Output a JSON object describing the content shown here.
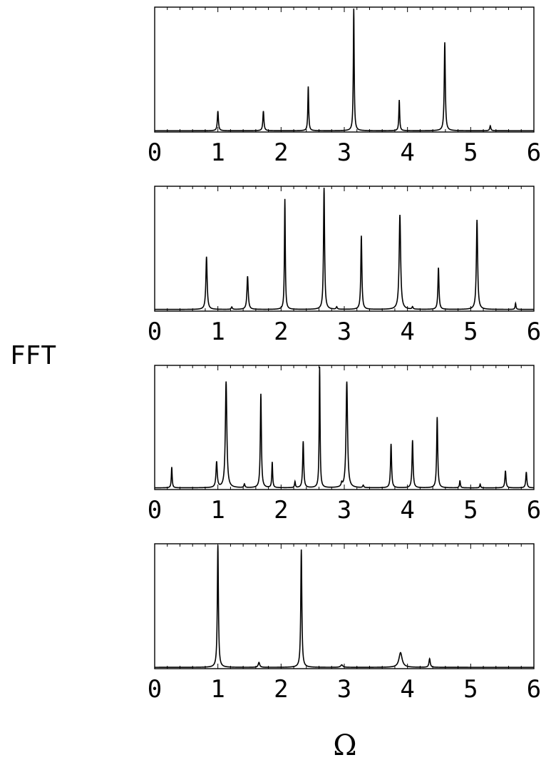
{
  "figure": {
    "ylabel": "FFT",
    "xlabel": "Ω"
  },
  "chart_data": [
    {
      "type": "line",
      "xlim": [
        0,
        6
      ],
      "ylim": [
        0,
        1
      ],
      "xticks": [
        "0",
        "1",
        "2",
        "3",
        "4",
        "5",
        "6"
      ],
      "baseline": 0.005,
      "peaks": [
        {
          "x": 1.0,
          "h": 0.16,
          "w": 0.01
        },
        {
          "x": 1.72,
          "h": 0.16,
          "w": 0.01
        },
        {
          "x": 2.43,
          "h": 0.36,
          "w": 0.008
        },
        {
          "x": 3.15,
          "h": 1.0,
          "w": 0.008
        },
        {
          "x": 3.87,
          "h": 0.25,
          "w": 0.008
        },
        {
          "x": 4.59,
          "h": 0.72,
          "w": 0.01
        },
        {
          "x": 5.31,
          "h": 0.04,
          "w": 0.01
        }
      ]
    },
    {
      "type": "line",
      "xlim": [
        0,
        6
      ],
      "ylim": [
        0,
        1
      ],
      "xticks": [
        "0",
        "1",
        "2",
        "3",
        "4",
        "5",
        "6"
      ],
      "baseline": 0.008,
      "peaks": [
        {
          "x": 0.82,
          "h": 0.43,
          "w": 0.012
        },
        {
          "x": 1.22,
          "h": 0.02,
          "w": 0.01
        },
        {
          "x": 1.47,
          "h": 0.27,
          "w": 0.012
        },
        {
          "x": 2.06,
          "h": 0.9,
          "w": 0.008
        },
        {
          "x": 2.68,
          "h": 1.0,
          "w": 0.01
        },
        {
          "x": 2.88,
          "h": 0.02,
          "w": 0.01
        },
        {
          "x": 3.27,
          "h": 0.6,
          "w": 0.01
        },
        {
          "x": 3.88,
          "h": 0.77,
          "w": 0.014
        },
        {
          "x": 4.08,
          "h": 0.02,
          "w": 0.01
        },
        {
          "x": 4.49,
          "h": 0.34,
          "w": 0.01
        },
        {
          "x": 5.1,
          "h": 0.73,
          "w": 0.012
        },
        {
          "x": 5.71,
          "h": 0.05,
          "w": 0.008
        }
      ]
    },
    {
      "type": "line",
      "xlim": [
        0,
        6
      ],
      "ylim": [
        0,
        1
      ],
      "xticks": [
        "0",
        "1",
        "2",
        "3",
        "4",
        "5",
        "6"
      ],
      "baseline": 0.008,
      "peaks": [
        {
          "x": 0.27,
          "h": 0.17,
          "w": 0.008
        },
        {
          "x": 0.98,
          "h": 0.21,
          "w": 0.012
        },
        {
          "x": 1.13,
          "h": 0.87,
          "w": 0.014
        },
        {
          "x": 1.42,
          "h": 0.03,
          "w": 0.01
        },
        {
          "x": 1.68,
          "h": 0.77,
          "w": 0.01
        },
        {
          "x": 1.86,
          "h": 0.21,
          "w": 0.008
        },
        {
          "x": 2.22,
          "h": 0.05,
          "w": 0.008
        },
        {
          "x": 2.35,
          "h": 0.38,
          "w": 0.01
        },
        {
          "x": 2.61,
          "h": 1.0,
          "w": 0.008
        },
        {
          "x": 2.96,
          "h": 0.03,
          "w": 0.01
        },
        {
          "x": 3.04,
          "h": 0.87,
          "w": 0.014
        },
        {
          "x": 3.3,
          "h": 0.02,
          "w": 0.01
        },
        {
          "x": 3.74,
          "h": 0.36,
          "w": 0.01
        },
        {
          "x": 4.08,
          "h": 0.39,
          "w": 0.01
        },
        {
          "x": 4.47,
          "h": 0.58,
          "w": 0.01
        },
        {
          "x": 4.83,
          "h": 0.06,
          "w": 0.008
        },
        {
          "x": 5.15,
          "h": 0.03,
          "w": 0.008
        },
        {
          "x": 5.55,
          "h": 0.14,
          "w": 0.01
        },
        {
          "x": 5.88,
          "h": 0.13,
          "w": 0.01
        }
      ]
    },
    {
      "type": "line",
      "xlim": [
        0,
        6
      ],
      "ylim": [
        0,
        1
      ],
      "xticks": [
        "0",
        "1",
        "2",
        "3",
        "4",
        "5",
        "6"
      ],
      "baseline": 0.005,
      "peaks": [
        {
          "x": 1.0,
          "h": 1.0,
          "w": 0.01
        },
        {
          "x": 1.65,
          "h": 0.04,
          "w": 0.014
        },
        {
          "x": 2.32,
          "h": 0.96,
          "w": 0.01
        },
        {
          "x": 2.96,
          "h": 0.02,
          "w": 0.02
        },
        {
          "x": 3.89,
          "h": 0.12,
          "w": 0.03
        },
        {
          "x": 4.35,
          "h": 0.07,
          "w": 0.012
        }
      ]
    }
  ]
}
